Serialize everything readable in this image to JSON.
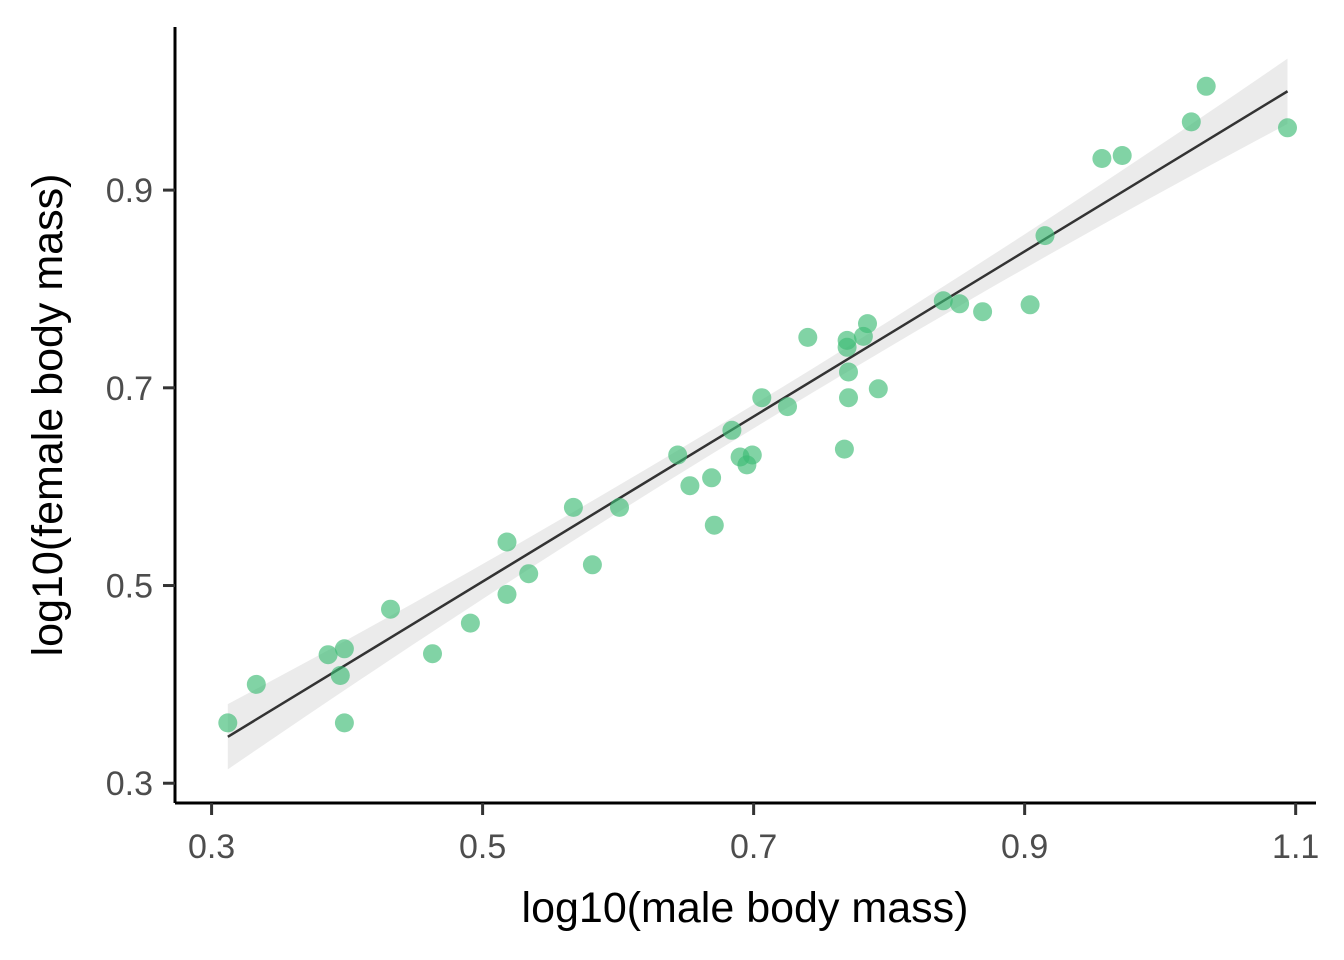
{
  "chart_data": {
    "type": "scatter",
    "xlabel": "log10(male body mass)",
    "ylabel": "log10(female body mass)",
    "xlim": [
      0.273,
      1.115
    ],
    "ylim": [
      0.28,
      1.065
    ],
    "x_ticks": [
      0.3,
      0.5,
      0.7,
      0.9,
      1.1
    ],
    "y_ticks": [
      0.3,
      0.5,
      0.7,
      0.9
    ],
    "x_tick_labels": [
      "0.3",
      "0.5",
      "0.7",
      "0.9",
      "1.1"
    ],
    "y_tick_labels": [
      "0.3",
      "0.5",
      "0.7",
      "0.9"
    ],
    "grid": false,
    "legend": "none",
    "colors": {
      "points": "#3DBB75",
      "fit_line": "#333333",
      "confidence_band": "#EBEBEB",
      "axis": "#000000",
      "tick_text": "#4D4D4D"
    },
    "series": [
      {
        "points": [
          [
            0.312,
            0.361
          ],
          [
            0.333,
            0.4
          ],
          [
            0.386,
            0.43
          ],
          [
            0.395,
            0.409
          ],
          [
            0.398,
            0.436
          ],
          [
            0.398,
            0.361
          ],
          [
            0.432,
            0.476
          ],
          [
            0.463,
            0.431
          ],
          [
            0.491,
            0.462
          ],
          [
            0.518,
            0.544
          ],
          [
            0.518,
            0.491
          ],
          [
            0.534,
            0.512
          ],
          [
            0.567,
            0.579
          ],
          [
            0.581,
            0.521
          ],
          [
            0.601,
            0.579
          ],
          [
            0.644,
            0.632
          ],
          [
            0.653,
            0.601
          ],
          [
            0.669,
            0.609
          ],
          [
            0.671,
            0.561
          ],
          [
            0.684,
            0.657
          ],
          [
            0.69,
            0.63
          ],
          [
            0.695,
            0.622
          ],
          [
            0.699,
            0.632
          ],
          [
            0.706,
            0.69
          ],
          [
            0.725,
            0.681
          ],
          [
            0.74,
            0.751
          ],
          [
            0.767,
            0.638
          ],
          [
            0.769,
            0.748
          ],
          [
            0.769,
            0.741
          ],
          [
            0.77,
            0.716
          ],
          [
            0.77,
            0.69
          ],
          [
            0.781,
            0.752
          ],
          [
            0.784,
            0.765
          ],
          [
            0.792,
            0.699
          ],
          [
            0.84,
            0.788
          ],
          [
            0.852,
            0.785
          ],
          [
            0.869,
            0.777
          ],
          [
            0.904,
            0.784
          ],
          [
            0.915,
            0.854
          ],
          [
            0.957,
            0.932
          ],
          [
            0.972,
            0.935
          ],
          [
            1.023,
            0.969
          ],
          [
            1.034,
            1.005
          ],
          [
            1.094,
            0.963
          ]
        ]
      }
    ],
    "fit": {
      "type": "linear",
      "x_range": [
        0.312,
        1.094
      ],
      "y_start": 0.347,
      "y_end": 1.0,
      "band_halfwidth_ends": 0.033,
      "band_halfwidth_center": 0.012
    }
  }
}
